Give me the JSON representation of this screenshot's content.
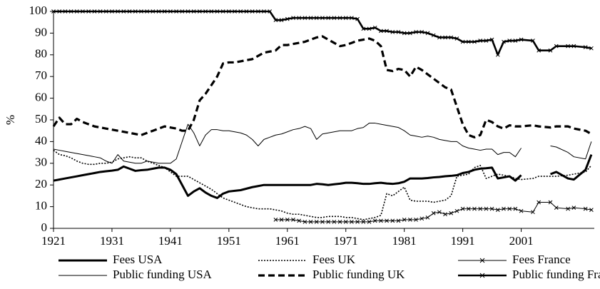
{
  "chart_data": {
    "type": "line",
    "ylabel": "%",
    "x": [
      1921,
      1922,
      1923,
      1924,
      1925,
      1926,
      1927,
      1928,
      1929,
      1930,
      1931,
      1932,
      1933,
      1934,
      1935,
      1936,
      1937,
      1938,
      1939,
      1940,
      1941,
      1942,
      1943,
      1944,
      1945,
      1946,
      1947,
      1948,
      1949,
      1950,
      1951,
      1952,
      1953,
      1954,
      1955,
      1956,
      1957,
      1958,
      1959,
      1960,
      1961,
      1962,
      1963,
      1964,
      1965,
      1966,
      1967,
      1968,
      1969,
      1970,
      1971,
      1972,
      1973,
      1974,
      1975,
      1976,
      1977,
      1978,
      1979,
      1980,
      1981,
      1982,
      1983,
      1984,
      1985,
      1986,
      1987,
      1988,
      1989,
      1990,
      1991,
      1992,
      1993,
      1994,
      1995,
      1996,
      1997,
      1998,
      1999,
      2000,
      2001,
      2003,
      2004,
      2006,
      2007,
      2009,
      2010,
      2012,
      2013
    ],
    "xlim": [
      1921,
      2013.5
    ],
    "xticks": [
      1921,
      1931,
      1941,
      1951,
      1961,
      1971,
      1981,
      1991,
      2001
    ],
    "ylim": [
      0,
      100
    ],
    "yticks": [
      0,
      10,
      20,
      30,
      40,
      50,
      60,
      70,
      80,
      90,
      100
    ],
    "series": [
      {
        "name": "Fees USA",
        "color": "#000000",
        "width": 3,
        "dash": "none",
        "marker": "none",
        "values": [
          22,
          22.5,
          23,
          23.5,
          24,
          24.5,
          25,
          25.5,
          26,
          26.3,
          26.6,
          27,
          28.5,
          27.5,
          26.5,
          26.8,
          27,
          27.5,
          28,
          28,
          27,
          25,
          20,
          15,
          17,
          18.5,
          16.5,
          15,
          14,
          16,
          17,
          17.3,
          17.6,
          18.3,
          19,
          19.5,
          20,
          20,
          20,
          20,
          20,
          20,
          20,
          20,
          20,
          20.5,
          20.3,
          20,
          20.3,
          20.6,
          21,
          21,
          20.8,
          20.5,
          20.5,
          20.8,
          21,
          20.7,
          20.5,
          20.8,
          21.5,
          23,
          23,
          23,
          23.2,
          23.5,
          23.7,
          24,
          24.2,
          24.5,
          25.5,
          26,
          27,
          27.5,
          27.7,
          28,
          23,
          23.5,
          24,
          22,
          24.5,
          null,
          null,
          25,
          26,
          23,
          22.5,
          27,
          34
        ]
      },
      {
        "name": "Fees UK",
        "color": "#000000",
        "width": 1.6,
        "dash": "2 2",
        "marker": "none",
        "values": [
          36,
          34,
          33.5,
          32.5,
          31,
          30,
          29.5,
          29.5,
          30,
          30,
          30.5,
          32,
          32.5,
          33,
          32.5,
          32.5,
          31,
          30,
          29,
          28,
          26,
          24,
          24,
          24,
          22.5,
          21,
          19.5,
          18,
          16,
          14,
          13,
          12,
          11,
          10,
          9.5,
          9,
          9,
          9,
          8.5,
          8,
          7,
          6.5,
          6.5,
          6,
          5.5,
          5,
          5,
          5.5,
          5.5,
          5.5,
          5,
          5,
          4.5,
          4,
          4.5,
          5,
          6,
          16,
          15,
          17,
          19,
          13,
          12.5,
          12.5,
          12.5,
          12,
          12.5,
          13,
          15,
          24,
          24.5,
          25,
          28,
          29,
          23,
          24,
          25,
          24.5,
          24,
          23,
          22.5,
          23,
          24,
          24,
          24,
          24.5,
          25,
          26,
          29
        ]
      },
      {
        "name": "Fees France",
        "color": "#000000",
        "width": 1,
        "dash": "none",
        "marker": "cross",
        "values": [
          null,
          null,
          null,
          null,
          null,
          null,
          null,
          null,
          null,
          null,
          null,
          null,
          null,
          null,
          null,
          null,
          null,
          null,
          null,
          null,
          null,
          null,
          null,
          null,
          null,
          null,
          null,
          null,
          null,
          null,
          null,
          null,
          null,
          null,
          null,
          null,
          null,
          null,
          4,
          4,
          4,
          4,
          3.5,
          3,
          3,
          3,
          3,
          3,
          3,
          3,
          3,
          3,
          3,
          3,
          3,
          3.5,
          3.5,
          3.5,
          3.5,
          3.5,
          4,
          4,
          4,
          4.5,
          5,
          7,
          7.5,
          6.5,
          7,
          8,
          9,
          9,
          9,
          9,
          9,
          9,
          8.5,
          9,
          9,
          9,
          8,
          7.5,
          12,
          12,
          9.5,
          9,
          9.5,
          9,
          8.5
        ]
      },
      {
        "name": "Public funding USA",
        "color": "#000000",
        "width": 1,
        "dash": "none",
        "marker": "none",
        "values": [
          36.5,
          36,
          35.5,
          35,
          34.5,
          34,
          33.5,
          33,
          32.5,
          31,
          30,
          34,
          31,
          30.5,
          30,
          30,
          31,
          30.5,
          30,
          30,
          30,
          32,
          40,
          48,
          44,
          38,
          43,
          45.5,
          45.5,
          45,
          45,
          44.5,
          44,
          43,
          41,
          38,
          41,
          42,
          43,
          43.5,
          44.5,
          45.5,
          46,
          47,
          46,
          41,
          43.5,
          44,
          44.5,
          45,
          45,
          45,
          46,
          46.5,
          48.5,
          48.5,
          48,
          47.5,
          47,
          46.5,
          45,
          43,
          42.5,
          42,
          42.5,
          42,
          41,
          40.5,
          40,
          40,
          38,
          37,
          36.5,
          36,
          36.5,
          36.5,
          34,
          35,
          35,
          33,
          37,
          null,
          null,
          38,
          37.5,
          35,
          33,
          32,
          40
        ]
      },
      {
        "name": "Public funding UK",
        "color": "#000000",
        "width": 3.2,
        "dash": "9 5",
        "marker": "none",
        "values": [
          47,
          51,
          48,
          48,
          50.5,
          49,
          48,
          47,
          46.5,
          46,
          45.5,
          45,
          44.5,
          44,
          43.5,
          43,
          44,
          45,
          46,
          47,
          46.5,
          46,
          45,
          45,
          50,
          59,
          62,
          66,
          70,
          76,
          76.5,
          76.5,
          77,
          77.5,
          78,
          79.5,
          81,
          81.5,
          82,
          84.5,
          84.5,
          85,
          85.5,
          86,
          87,
          88,
          88.5,
          87,
          85.5,
          84,
          84.5,
          85.5,
          86.5,
          87,
          87.5,
          86.5,
          84,
          73,
          72.5,
          73.5,
          73,
          70,
          74.5,
          73,
          71,
          69,
          67,
          65,
          64,
          56,
          48,
          43,
          42,
          43,
          50,
          49,
          47,
          46,
          47.5,
          47,
          47,
          47.5,
          47,
          46.5,
          47,
          47,
          46,
          45,
          43.5
        ]
      },
      {
        "name": "Public funding France",
        "color": "#000000",
        "width": 2.6,
        "dash": "none",
        "marker": "cross",
        "values": [
          100,
          100,
          100,
          100,
          100,
          100,
          100,
          100,
          100,
          100,
          100,
          100,
          100,
          100,
          100,
          100,
          100,
          100,
          100,
          100,
          100,
          100,
          100,
          100,
          100,
          100,
          100,
          100,
          100,
          100,
          100,
          100,
          100,
          100,
          100,
          100,
          100,
          100,
          96,
          96,
          96.5,
          97,
          97,
          97,
          97,
          97,
          97,
          97,
          97,
          97,
          97,
          97,
          96.5,
          92,
          92,
          92.5,
          91,
          91,
          90.5,
          90.5,
          90,
          90,
          90.5,
          90.5,
          90,
          89,
          88,
          88,
          88,
          87.5,
          86,
          86,
          86,
          86.5,
          86.5,
          87,
          80,
          86,
          86.5,
          86.5,
          87,
          86.5,
          82,
          82,
          84,
          84,
          84,
          83.5,
          83
        ]
      }
    ]
  }
}
